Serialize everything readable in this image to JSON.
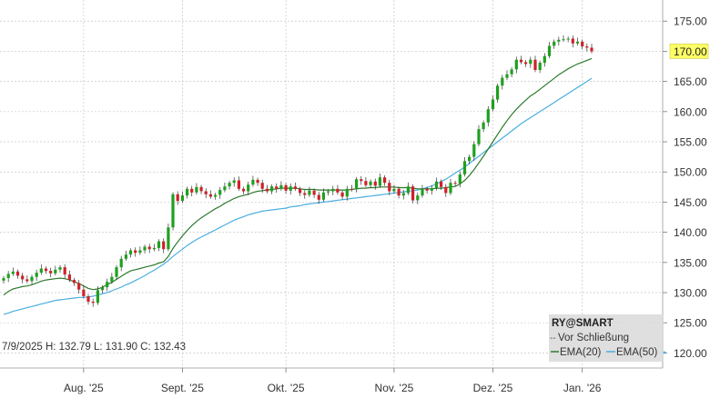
{
  "chart_data": {
    "type": "candlestick",
    "symbol": "RY@SMART",
    "y_axis": {
      "ticks": [
        "120.00",
        "125.00",
        "130.00",
        "135.00",
        "140.00",
        "145.00",
        "150.00",
        "155.00",
        "160.00",
        "165.00",
        "170.00",
        "175.00"
      ],
      "tick_values": [
        120,
        125,
        130,
        135,
        140,
        145,
        150,
        155,
        160,
        165,
        170,
        175
      ],
      "range": [
        117.5,
        178.5
      ],
      "position": "right"
    },
    "x_axis": {
      "labels": [
        "Aug. '25",
        "Sept. '25",
        "Okt. '25",
        "Nov. '25",
        "Dez. '25",
        "Jan. '26"
      ],
      "label_index": [
        17,
        38,
        60,
        83,
        104,
        123
      ]
    },
    "grid": true,
    "last_price_label": "170.00",
    "last_price": 170.0,
    "info_line": "7/9/2025 H: 132.79 L: 131.90 C: 132.43",
    "legend": {
      "title": "RY@SMART",
      "items": [
        "Vor Schließung",
        "EMA(20)",
        "EMA(50)"
      ],
      "position": "bottom-right"
    },
    "colors": {
      "up": "#1fa01f",
      "down": "#d0202a",
      "ema20": "#2d7a2d",
      "ema50": "#4aaee0",
      "grid": "#c8c8c8",
      "price_label_bg": "#ffff66"
    },
    "closes": [
      132.4,
      133.1,
      133.5,
      132.8,
      132.2,
      131.9,
      132.6,
      133.3,
      134.0,
      133.6,
      133.2,
      133.8,
      134.2,
      133.0,
      132.1,
      131.6,
      130.5,
      129.4,
      128.5,
      128.3,
      130.4,
      130.9,
      131.8,
      132.6,
      134.2,
      135.6,
      136.3,
      137.0,
      136.6,
      137.0,
      137.6,
      137.2,
      137.4,
      138.5,
      137.2,
      140.8,
      146.3,
      145.2,
      146.1,
      147.2,
      146.6,
      147.5,
      146.8,
      146.3,
      145.9,
      146.2,
      147.0,
      147.6,
      148.2,
      148.6,
      147.2,
      146.8,
      147.9,
      148.7,
      148.2,
      147.2,
      146.8,
      147.6,
      147.2,
      147.8,
      146.9,
      147.6,
      147.2,
      146.5,
      146.2,
      146.9,
      146.2,
      145.4,
      146.6,
      146.8,
      147.2,
      146.6,
      145.9,
      147.2,
      147.1,
      148.8,
      148.5,
      147.8,
      148.4,
      147.7,
      149.1,
      148.2,
      146.8,
      147.2,
      146.1,
      146.5,
      147.6,
      145.3,
      146.1,
      147.2,
      146.9,
      147.3,
      148.4,
      147.5,
      146.5,
      148.2,
      148.1,
      149.6,
      151.8,
      152.5,
      154.6,
      157.1,
      158.2,
      160.4,
      162.0,
      164.3,
      165.6,
      166.2,
      167.0,
      168.6,
      168.2,
      167.9,
      168.6,
      166.9,
      168.1,
      169.2,
      170.9,
      171.6,
      171.9,
      172.0,
      172.1,
      171.3,
      171.6,
      170.8,
      170.6,
      170.0
    ],
    "ema20": [
      129.6,
      130.2,
      130.6,
      130.8,
      131.0,
      131.1,
      131.3,
      131.6,
      131.9,
      132.1,
      132.2,
      132.3,
      132.4,
      132.3,
      132.1,
      131.8,
      131.5,
      131.1,
      130.7,
      130.5,
      130.6,
      130.9,
      131.3,
      131.7,
      132.2,
      132.7,
      133.2,
      133.6,
      133.8,
      134.0,
      134.2,
      134.4,
      134.6,
      134.9,
      135.1,
      136.0,
      137.3,
      138.4,
      139.4,
      140.3,
      141.1,
      141.8,
      142.4,
      142.9,
      143.4,
      143.9,
      144.3,
      144.8,
      145.2,
      145.6,
      145.9,
      146.1,
      146.3,
      146.6,
      146.8,
      146.9,
      147.0,
      147.1,
      147.2,
      147.3,
      147.3,
      147.3,
      147.3,
      147.2,
      147.1,
      147.1,
      147.1,
      147.0,
      147.0,
      147.0,
      147.0,
      147.0,
      147.0,
      147.0,
      147.1,
      147.2,
      147.3,
      147.3,
      147.4,
      147.4,
      147.5,
      147.5,
      147.5,
      147.5,
      147.4,
      147.4,
      147.4,
      147.3,
      147.2,
      147.2,
      147.2,
      147.2,
      147.3,
      147.3,
      147.4,
      147.5,
      147.6,
      148.0,
      148.6,
      149.4,
      150.4,
      151.5,
      152.6,
      153.8,
      155.0,
      156.2,
      157.4,
      158.5,
      159.5,
      160.4,
      161.2,
      161.9,
      162.6,
      163.1,
      163.7,
      164.3,
      164.9,
      165.5,
      166.1,
      166.6,
      167.1,
      167.5,
      167.9,
      168.2,
      168.5,
      168.8
    ],
    "ema50": [
      126.4,
      126.6,
      126.9,
      127.1,
      127.3,
      127.5,
      127.7,
      127.9,
      128.1,
      128.3,
      128.5,
      128.7,
      128.8,
      128.9,
      129.0,
      129.1,
      129.2,
      129.2,
      129.3,
      129.4,
      129.6,
      129.8,
      130.0,
      130.3,
      130.6,
      130.9,
      131.3,
      131.6,
      132.0,
      132.4,
      132.8,
      133.3,
      133.7,
      134.2,
      134.7,
      135.3,
      136.0,
      136.6,
      137.2,
      137.8,
      138.3,
      138.8,
      139.2,
      139.6,
      140.0,
      140.4,
      140.8,
      141.2,
      141.6,
      142.0,
      142.3,
      142.6,
      142.9,
      143.1,
      143.3,
      143.5,
      143.6,
      143.7,
      143.8,
      143.9,
      144.0,
      144.2,
      144.3,
      144.4,
      144.6,
      144.7,
      144.8,
      144.9,
      145.0,
      145.1,
      145.2,
      145.3,
      145.4,
      145.5,
      145.6,
      145.7,
      145.8,
      145.9,
      146.0,
      146.1,
      146.2,
      146.3,
      146.4,
      146.5,
      146.6,
      146.7,
      146.8,
      146.9,
      147.0,
      147.2,
      147.4,
      147.7,
      148.0,
      148.4,
      148.8,
      149.3,
      149.8,
      150.3,
      150.8,
      151.4,
      152.0,
      152.6,
      153.2,
      153.8,
      154.4,
      155.0,
      155.6,
      156.2,
      156.8,
      157.4,
      158.0,
      158.5,
      159.0,
      159.5,
      160.0,
      160.5,
      161.0,
      161.5,
      162.0,
      162.5,
      163.0,
      163.5,
      164.0,
      164.5,
      165.0,
      165.5
    ]
  }
}
